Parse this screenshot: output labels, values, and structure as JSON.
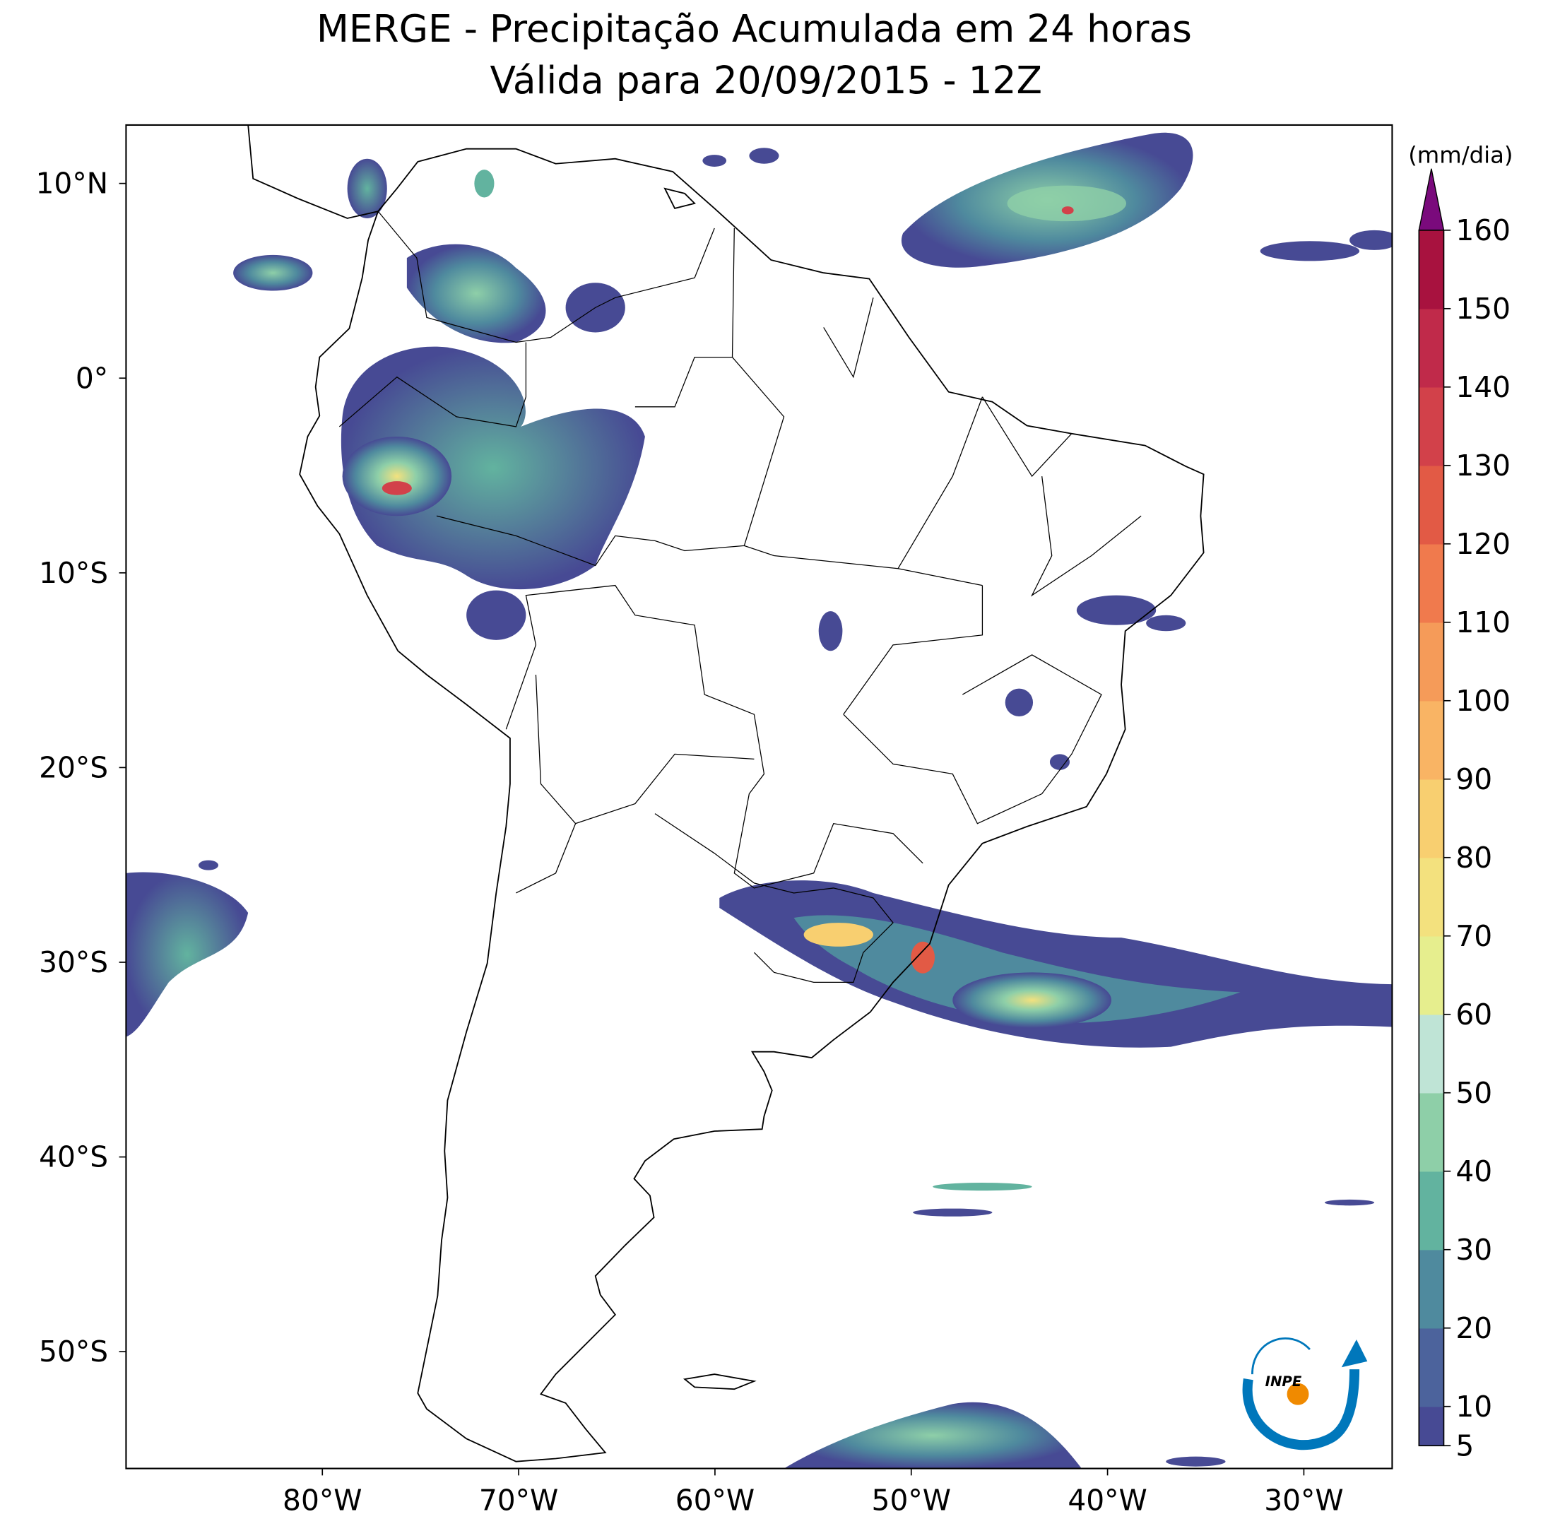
{
  "title": "MERGE - Precipitação Acumulada em 24 horas",
  "subtitle": "Válida para 20/09/2015 - 12Z",
  "map": {
    "xlim": [
      -90,
      -25.5
    ],
    "ylim": [
      -56,
      13
    ],
    "xticks": [
      {
        "value": -80,
        "label": "80°W"
      },
      {
        "value": -70,
        "label": "70°W"
      },
      {
        "value": -60,
        "label": "60°W"
      },
      {
        "value": -50,
        "label": "50°W"
      },
      {
        "value": -40,
        "label": "40°W"
      },
      {
        "value": -30,
        "label": "30°W"
      }
    ],
    "yticks": [
      {
        "value": 10,
        "label": "10°N"
      },
      {
        "value": 0,
        "label": "0°"
      },
      {
        "value": -10,
        "label": "10°S"
      },
      {
        "value": -20,
        "label": "20°S"
      },
      {
        "value": -30,
        "label": "30°S"
      },
      {
        "value": -40,
        "label": "40°S"
      },
      {
        "value": -50,
        "label": "50°S"
      }
    ]
  },
  "colorbar": {
    "label": "(mm/dia)",
    "ticks": [
      5,
      10,
      20,
      30,
      40,
      50,
      60,
      70,
      80,
      90,
      100,
      110,
      120,
      130,
      140,
      150,
      160
    ],
    "colors": [
      "#474a94",
      "#4c639c",
      "#4f8a9e",
      "#62b39f",
      "#8ecfa8",
      "#bfe4d6",
      "#e6ee8e",
      "#f3e17e",
      "#f8cf70",
      "#f9b464",
      "#f59b59",
      "#f07a4d",
      "#e25a45",
      "#d2414a",
      "#c02a4a",
      "#a8123f"
    ],
    "extend_color": "#7a0a7c"
  },
  "logo": "INPE"
}
